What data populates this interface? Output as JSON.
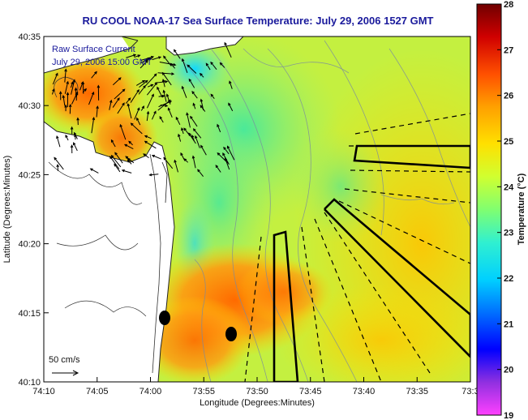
{
  "title": "RU COOL  NOAA-17  Sea Surface Temperature:  July 29, 2006 1527 GMT",
  "overlay_text": [
    "Raw Surface Current",
    "July 29, 2006 15:00 GMT"
  ],
  "scale_label": "50 cm/s",
  "x_axis": {
    "label": "Longitude (Degrees:Minutes)",
    "ticks": [
      "74:10",
      "74:05",
      "74:00",
      "73:55",
      "73:50",
      "73:45",
      "73:40",
      "73:35",
      "73:3"
    ]
  },
  "y_axis": {
    "label": "Latitude (Degrees:Minutes)",
    "ticks": [
      "40:35",
      "40:30",
      "40:25",
      "40:20",
      "40:15",
      "40:10"
    ]
  },
  "colorbar": {
    "label": "Temperature (°C)",
    "ticks": [
      "28",
      "27",
      "26",
      "25",
      "24",
      "23",
      "22",
      "21",
      "20",
      "19"
    ],
    "colors": [
      "#ff40ff",
      "#8a2be2",
      "#0000ff",
      "#0080ff",
      "#00e0ff",
      "#40ffc0",
      "#a0ff60",
      "#e8ff20",
      "#ffd000",
      "#ff8000",
      "#ff2000",
      "#b00000",
      "#700000"
    ]
  },
  "map": {
    "land_color": "#ffffff",
    "coast_color": "#222222",
    "markers": 2
  }
}
